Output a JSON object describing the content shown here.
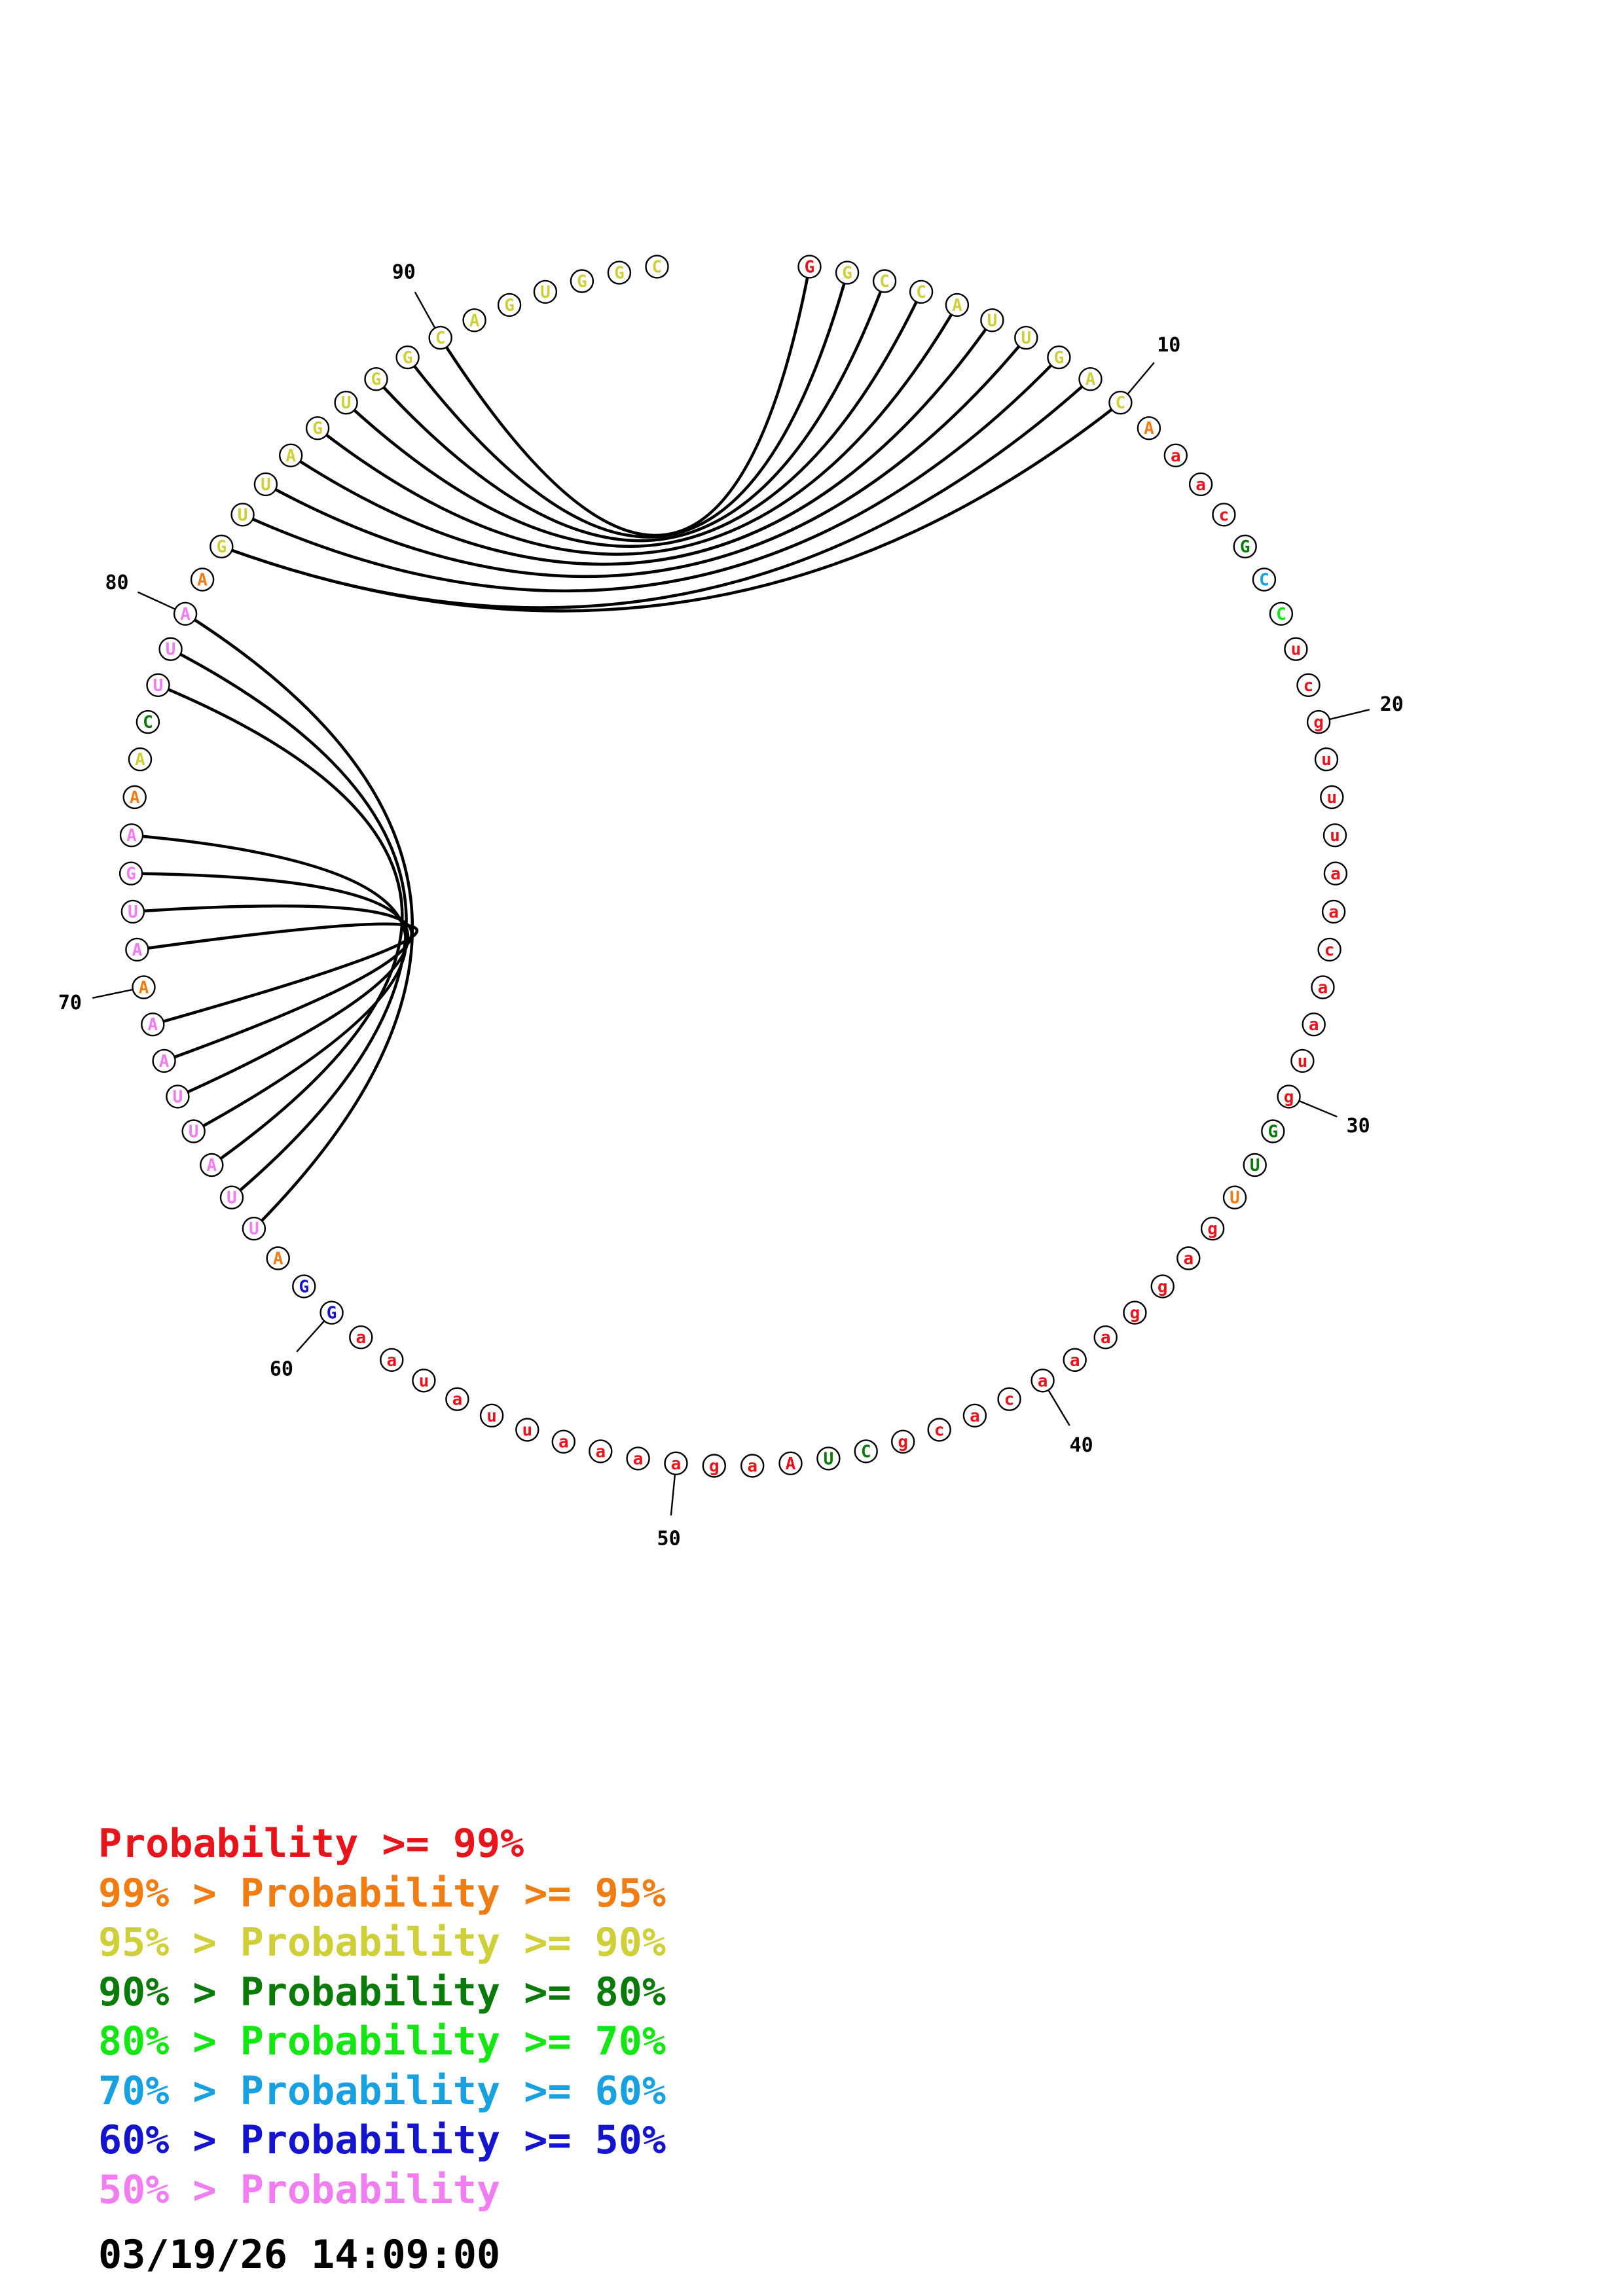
{
  "colors": {
    "p99": "#e8141c",
    "p95": "#f07d14",
    "p90": "#cfcf3a",
    "p80": "#0a7a0a",
    "p70": "#14e614",
    "p60": "#18a0e0",
    "p50": "#1414cc",
    "plow": "#f07ef0"
  },
  "nucleotides": [
    {
      "n": 1,
      "b": "G",
      "c": "p99"
    },
    {
      "n": 2,
      "b": "G",
      "c": "p90"
    },
    {
      "n": 3,
      "b": "C",
      "c": "p90"
    },
    {
      "n": 4,
      "b": "C",
      "c": "p90"
    },
    {
      "n": 5,
      "b": "A",
      "c": "p90"
    },
    {
      "n": 6,
      "b": "U",
      "c": "p90"
    },
    {
      "n": 7,
      "b": "U",
      "c": "p90"
    },
    {
      "n": 8,
      "b": "G",
      "c": "p90"
    },
    {
      "n": 9,
      "b": "A",
      "c": "p90"
    },
    {
      "n": 10,
      "b": "C",
      "c": "p90"
    },
    {
      "n": 11,
      "b": "A",
      "c": "p95"
    },
    {
      "n": 12,
      "b": "a",
      "c": "p99"
    },
    {
      "n": 13,
      "b": "a",
      "c": "p99"
    },
    {
      "n": 14,
      "b": "c",
      "c": "p99"
    },
    {
      "n": 15,
      "b": "G",
      "c": "p80"
    },
    {
      "n": 16,
      "b": "C",
      "c": "p60"
    },
    {
      "n": 17,
      "b": "C",
      "c": "p70"
    },
    {
      "n": 18,
      "b": "u",
      "c": "p99"
    },
    {
      "n": 19,
      "b": "c",
      "c": "p99"
    },
    {
      "n": 20,
      "b": "g",
      "c": "p99"
    },
    {
      "n": 21,
      "b": "u",
      "c": "p99"
    },
    {
      "n": 22,
      "b": "u",
      "c": "p99"
    },
    {
      "n": 23,
      "b": "u",
      "c": "p99"
    },
    {
      "n": 24,
      "b": "a",
      "c": "p99"
    },
    {
      "n": 25,
      "b": "a",
      "c": "p99"
    },
    {
      "n": 26,
      "b": "c",
      "c": "p99"
    },
    {
      "n": 27,
      "b": "a",
      "c": "p99"
    },
    {
      "n": 28,
      "b": "a",
      "c": "p99"
    },
    {
      "n": 29,
      "b": "u",
      "c": "p99"
    },
    {
      "n": 30,
      "b": "g",
      "c": "p99"
    },
    {
      "n": 31,
      "b": "G",
      "c": "p80"
    },
    {
      "n": 32,
      "b": "U",
      "c": "p80"
    },
    {
      "n": 33,
      "b": "U",
      "c": "p95"
    },
    {
      "n": 34,
      "b": "g",
      "c": "p99"
    },
    {
      "n": 35,
      "b": "a",
      "c": "p99"
    },
    {
      "n": 36,
      "b": "g",
      "c": "p99"
    },
    {
      "n": 37,
      "b": "g",
      "c": "p99"
    },
    {
      "n": 38,
      "b": "a",
      "c": "p99"
    },
    {
      "n": 39,
      "b": "a",
      "c": "p99"
    },
    {
      "n": 40,
      "b": "a",
      "c": "p99"
    },
    {
      "n": 41,
      "b": "c",
      "c": "p99"
    },
    {
      "n": 42,
      "b": "a",
      "c": "p99"
    },
    {
      "n": 43,
      "b": "c",
      "c": "p99"
    },
    {
      "n": 44,
      "b": "g",
      "c": "p99"
    },
    {
      "n": 45,
      "b": "C",
      "c": "p80"
    },
    {
      "n": 46,
      "b": "U",
      "c": "p80"
    },
    {
      "n": 47,
      "b": "A",
      "c": "p99"
    },
    {
      "n": 48,
      "b": "a",
      "c": "p99"
    },
    {
      "n": 49,
      "b": "g",
      "c": "p99"
    },
    {
      "n": 50,
      "b": "a",
      "c": "p99"
    },
    {
      "n": 51,
      "b": "a",
      "c": "p99"
    },
    {
      "n": 52,
      "b": "a",
      "c": "p99"
    },
    {
      "n": 53,
      "b": "a",
      "c": "p99"
    },
    {
      "n": 54,
      "b": "u",
      "c": "p99"
    },
    {
      "n": 55,
      "b": "u",
      "c": "p99"
    },
    {
      "n": 56,
      "b": "a",
      "c": "p99"
    },
    {
      "n": 57,
      "b": "u",
      "c": "p99"
    },
    {
      "n": 58,
      "b": "a",
      "c": "p99"
    },
    {
      "n": 59,
      "b": "a",
      "c": "p99"
    },
    {
      "n": 60,
      "b": "G",
      "c": "p50"
    },
    {
      "n": 61,
      "b": "G",
      "c": "p50"
    },
    {
      "n": 62,
      "b": "A",
      "c": "p95"
    },
    {
      "n": 63,
      "b": "U",
      "c": "plow"
    },
    {
      "n": 64,
      "b": "U",
      "c": "plow"
    },
    {
      "n": 65,
      "b": "A",
      "c": "plow"
    },
    {
      "n": 66,
      "b": "U",
      "c": "plow"
    },
    {
      "n": 67,
      "b": "U",
      "c": "plow"
    },
    {
      "n": 68,
      "b": "A",
      "c": "plow"
    },
    {
      "n": 69,
      "b": "A",
      "c": "plow"
    },
    {
      "n": 70,
      "b": "A",
      "c": "p95"
    },
    {
      "n": 71,
      "b": "A",
      "c": "plow"
    },
    {
      "n": 72,
      "b": "U",
      "c": "plow"
    },
    {
      "n": 73,
      "b": "G",
      "c": "plow"
    },
    {
      "n": 74,
      "b": "A",
      "c": "plow"
    },
    {
      "n": 75,
      "b": "A",
      "c": "p95"
    },
    {
      "n": 76,
      "b": "A",
      "c": "p90"
    },
    {
      "n": 77,
      "b": "C",
      "c": "p80"
    },
    {
      "n": 78,
      "b": "U",
      "c": "plow"
    },
    {
      "n": 79,
      "b": "U",
      "c": "plow"
    },
    {
      "n": 80,
      "b": "A",
      "c": "plow"
    },
    {
      "n": 81,
      "b": "A",
      "c": "p95"
    },
    {
      "n": 82,
      "b": "G",
      "c": "p90"
    },
    {
      "n": 83,
      "b": "U",
      "c": "p90"
    },
    {
      "n": 84,
      "b": "U",
      "c": "p90"
    },
    {
      "n": 85,
      "b": "A",
      "c": "p90"
    },
    {
      "n": 86,
      "b": "G",
      "c": "p90"
    },
    {
      "n": 87,
      "b": "U",
      "c": "p90"
    },
    {
      "n": 88,
      "b": "G",
      "c": "p90"
    },
    {
      "n": 89,
      "b": "G",
      "c": "p90"
    },
    {
      "n": 90,
      "b": "C",
      "c": "p90"
    },
    {
      "n": 91,
      "b": "A",
      "c": "p90"
    },
    {
      "n": 92,
      "b": "G",
      "c": "p90"
    },
    {
      "n": 93,
      "b": "U",
      "c": "p90"
    },
    {
      "n": 94,
      "b": "G",
      "c": "p90"
    },
    {
      "n": 95,
      "b": "G",
      "c": "p90"
    },
    {
      "n": 96,
      "b": "C",
      "c": "p90"
    }
  ],
  "position_labels": [
    "10",
    "20",
    "30",
    "40",
    "50",
    "60",
    "70",
    "80",
    "90"
  ],
  "pairs": [
    [
      1,
      90
    ],
    [
      2,
      89
    ],
    [
      3,
      88
    ],
    [
      4,
      87
    ],
    [
      5,
      86
    ],
    [
      6,
      85
    ],
    [
      7,
      84
    ],
    [
      8,
      83
    ],
    [
      9,
      82
    ],
    [
      10,
      82
    ],
    [
      63,
      80
    ],
    [
      64,
      79
    ],
    [
      65,
      78
    ],
    [
      66,
      74
    ],
    [
      67,
      73
    ],
    [
      68,
      72
    ],
    [
      69,
      71
    ]
  ],
  "legend": [
    {
      "prefix": "",
      "text": "Probability >= 99%",
      "c": "p99"
    },
    {
      "prefix": "99% > ",
      "text": "Probability >= 95%",
      "c": "p95"
    },
    {
      "prefix": "95% > ",
      "text": "Probability >= 90%",
      "c": "p90"
    },
    {
      "prefix": "90% > ",
      "text": "Probability >= 80%",
      "c": "p80"
    },
    {
      "prefix": "80% > ",
      "text": "Probability >= 70%",
      "c": "p70"
    },
    {
      "prefix": "70% > ",
      "text": "Probability >= 60%",
      "c": "p60"
    },
    {
      "prefix": "60% > ",
      "text": "Probability >= 50%",
      "c": "p50"
    },
    {
      "prefix": "50% > ",
      "text": "Probability",
      "c": "plow"
    }
  ],
  "timestamp": "03/19/26 14:09:00"
}
